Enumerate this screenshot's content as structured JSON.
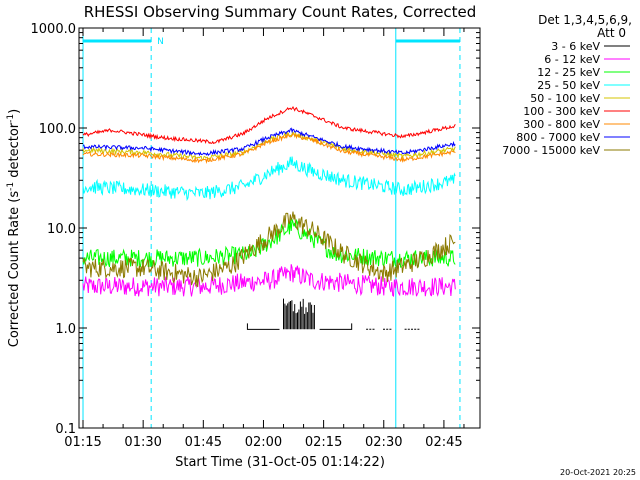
{
  "chart_data": {
    "type": "line",
    "title": "RHESSI Observing Summary Count Rates, Corrected",
    "xlabel": "Start Time (31-Oct-05 01:14:22)",
    "ylabel_main": "Corrected Count Rate (s",
    "ylabel_sup1": "-1",
    "ylabel_mid": " detector",
    "ylabel_sup2": "-1",
    "ylabel_end": ")",
    "yscale": "log",
    "ylim": [
      0.1,
      1000.0
    ],
    "xlim": [
      "01:14",
      "02:54"
    ],
    "x_ticks": [
      "01:15",
      "01:30",
      "01:45",
      "02:00",
      "02:15",
      "02:30",
      "02:45"
    ],
    "y_ticks": [
      "0.1",
      "1.0",
      "10.0",
      "100.0",
      "1000.0"
    ],
    "legend_header": [
      "Det 1,3,4,5,6,9,",
      "Att 0"
    ],
    "legend_placement": "right",
    "flag_label": "N",
    "vlines_cyan_dashed": [
      "01:32",
      "02:49"
    ],
    "vlines_cyan_solid": [
      "01:15",
      "02:33"
    ],
    "flag_bars": [
      [
        "01:15",
        "01:32"
      ],
      [
        "02:33",
        "02:49"
      ]
    ],
    "timestamp": "20-Oct-2021 20:25",
    "series": [
      {
        "name": "3 - 6 keV",
        "color": "#000000",
        "t": [
          "01:56",
          "02:04",
          "02:05",
          "02:13",
          "02:14",
          "02:22"
        ],
        "values": [
          0.97,
          0.97,
          1.6,
          1.6,
          0.97,
          0.97
        ]
      },
      {
        "name": "6 - 12 keV",
        "color": "#ff00ff",
        "t": [
          "01:15",
          "01:45",
          "02:02",
          "02:07",
          "02:12",
          "02:30",
          "02:48"
        ],
        "values": [
          2.6,
          2.6,
          3.0,
          3.6,
          3.0,
          2.6,
          2.6
        ]
      },
      {
        "name": "12 - 25 keV",
        "color": "#00ff00",
        "t": [
          "01:15",
          "01:45",
          "01:57",
          "02:03",
          "02:07",
          "02:12",
          "02:18",
          "02:30",
          "02:48"
        ],
        "values": [
          5.0,
          5.0,
          5.5,
          8.0,
          10.5,
          8.0,
          5.5,
          5.0,
          5.0
        ]
      },
      {
        "name": "25 - 50 keV",
        "color": "#00ffff",
        "t": [
          "01:15",
          "01:30",
          "01:45",
          "01:55",
          "02:01",
          "02:07",
          "02:12",
          "02:20",
          "02:35",
          "02:48"
        ],
        "values": [
          26,
          24,
          22,
          26,
          35,
          45,
          37,
          30,
          24,
          30
        ]
      },
      {
        "name": "50 - 100 keV",
        "color": "#d4c400",
        "t": [
          "01:15",
          "01:30",
          "01:45",
          "01:55",
          "02:01",
          "02:07",
          "02:12",
          "02:20",
          "02:35",
          "02:48"
        ],
        "values": [
          60,
          57,
          50,
          57,
          75,
          88,
          78,
          62,
          52,
          62
        ]
      },
      {
        "name": "100 - 300 keV",
        "color": "#ff0000",
        "t": [
          "01:15",
          "01:22",
          "01:35",
          "01:48",
          "01:55",
          "02:01",
          "02:07",
          "02:13",
          "02:20",
          "02:35",
          "02:48"
        ],
        "values": [
          85,
          95,
          80,
          72,
          88,
          125,
          160,
          130,
          100,
          82,
          105
        ]
      },
      {
        "name": "300 - 800 keV",
        "color": "#ff8800",
        "t": [
          "01:15",
          "01:30",
          "01:45",
          "01:55",
          "02:01",
          "02:07",
          "02:12",
          "02:20",
          "02:35",
          "02:48"
        ],
        "values": [
          55,
          53,
          47,
          55,
          72,
          85,
          76,
          58,
          48,
          58
        ]
      },
      {
        "name": "800 - 7000 keV",
        "color": "#0000ff",
        "t": [
          "01:15",
          "01:30",
          "01:45",
          "01:55",
          "02:01",
          "02:07",
          "02:12",
          "02:20",
          "02:35",
          "02:48"
        ],
        "values": [
          65,
          63,
          55,
          62,
          80,
          95,
          82,
          65,
          56,
          70
        ]
      },
      {
        "name": "7000 - 15000 keV",
        "color": "#8b7a00",
        "t": [
          "01:15",
          "01:30",
          "01:44",
          "01:52",
          "02:00",
          "02:07",
          "02:12",
          "02:20",
          "02:30",
          "02:40",
          "02:48"
        ],
        "values": [
          4.0,
          4.0,
          3.2,
          4.2,
          7.5,
          12.5,
          9.5,
          5.5,
          3.5,
          5.0,
          7.5
        ]
      }
    ]
  }
}
